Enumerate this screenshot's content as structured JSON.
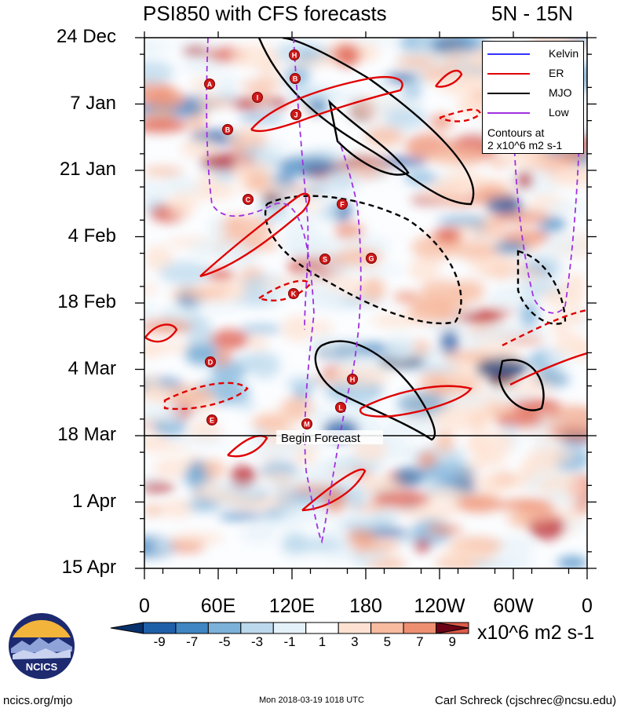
{
  "chart_data": {
    "type": "heatmap",
    "title": "PSI850 with CFS forecasts",
    "region": "5N - 15N",
    "y_labels": [
      "24 Dec",
      "7 Jan",
      "21 Jan",
      "4 Feb",
      "18 Feb",
      "4 Mar",
      "18 Mar",
      "1 Apr",
      "15 Apr"
    ],
    "x_labels": [
      "0",
      "60E",
      "120E",
      "180",
      "120W",
      "60W",
      "0"
    ],
    "x_range_deg_east": [
      0,
      360
    ],
    "forecast_marker": {
      "label": "Begin Forecast",
      "date": "18 Mar"
    },
    "colorbar": {
      "ticks": [
        "-9",
        "-7",
        "-5",
        "-3",
        "-1",
        "1",
        "3",
        "5",
        "7",
        "9"
      ],
      "colors": [
        "#08306b",
        "#1f5fa8",
        "#3f86c2",
        "#7cb2da",
        "#bcd8ec",
        "#e5f1f8",
        "#ffffff",
        "#fde2d2",
        "#f7bba0",
        "#ee8f72",
        "#dd5a4a",
        "#b8202e",
        "#6b0216"
      ],
      "unit": "x10^6 m2 s-1"
    },
    "legend": {
      "items": [
        {
          "label": "Kelvin",
          "color": "#3333ff",
          "dash": false
        },
        {
          "label": "ER",
          "color": "#e00000",
          "dash": false
        },
        {
          "label": "MJO",
          "color": "#000000",
          "dash": false
        },
        {
          "label": "Low",
          "color": "#a030e0",
          "dash": false
        }
      ],
      "note_line1": "Contours at",
      "note_line2": "2 x10^6 m2 s-1"
    },
    "storm_letters": [
      "H",
      "B",
      "A",
      "I",
      "J",
      "B",
      "C",
      "F",
      "S",
      "G",
      "K",
      "D",
      "H",
      "L",
      "E",
      "M"
    ]
  },
  "footer": {
    "left": "ncics.org/mjo",
    "center": "Mon 2018-03-19 1018 UTC",
    "right": "Carl Schreck (cjschrec@ncsu.edu)"
  },
  "logo": {
    "text": "NCICS"
  }
}
